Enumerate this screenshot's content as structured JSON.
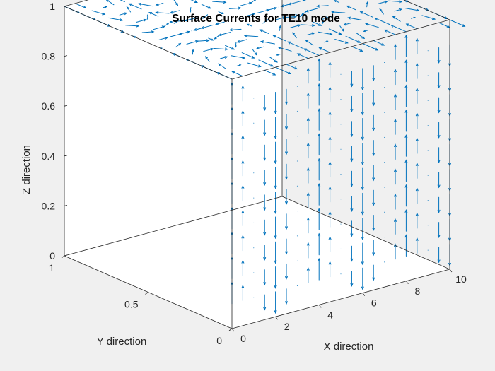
{
  "chart_data": {
    "type": "quiver3d",
    "title": "Surface Currents for TE10 mode",
    "xlabel": "X direction",
    "ylabel": "Y direction",
    "zlabel": "Z direction",
    "xlim": [
      0,
      10
    ],
    "ylim": [
      0,
      1
    ],
    "zlim": [
      0,
      1
    ],
    "xticks": [
      "0",
      "2",
      "4",
      "6",
      "8",
      "10"
    ],
    "yticks": [
      "0",
      "0.5",
      "1"
    ],
    "zticks": [
      "0",
      "0.2",
      "0.4",
      "0.6",
      "0.8",
      "1"
    ],
    "box": "on",
    "grid": "off",
    "arrow_color": "#0072bd",
    "series": [
      {
        "surface": "top (z = 1)",
        "field": "J_x = sin(pi*y)*sin(pi*x/2), J_y = cos(pi*y)*cos(pi*x/2)",
        "grid_x": [
          0,
          0.5,
          1,
          1.5,
          2,
          2.5,
          3,
          3.5,
          4,
          4.5,
          5,
          5.5,
          6,
          6.5,
          7,
          7.5,
          8,
          8.5,
          9,
          9.5,
          10
        ],
        "grid_y": [
          0,
          0.1,
          0.2,
          0.3,
          0.4,
          0.5,
          0.6,
          0.7,
          0.8,
          0.9,
          1
        ]
      },
      {
        "surface": "front (y = 0)",
        "field": "J_z = cos(pi*x/2)",
        "grid_x": [
          0,
          0.5,
          1,
          1.5,
          2,
          2.5,
          3,
          3.5,
          4,
          4.5,
          5,
          5.5,
          6,
          6.5,
          7,
          7.5,
          8,
          8.5,
          9,
          9.5,
          10
        ],
        "grid_z": [
          0.1,
          0.2,
          0.3,
          0.4,
          0.5,
          0.6,
          0.7,
          0.8,
          0.9
        ]
      }
    ]
  },
  "colors": {
    "background": "#f0f0f0",
    "axes": "#ffffff",
    "arrows": "#0072bd"
  }
}
